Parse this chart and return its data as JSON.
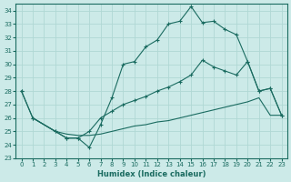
{
  "xlabel": "Humidex (Indice chaleur)",
  "bg_color": "#cceae8",
  "grid_color": "#b0d8d4",
  "line_color": "#1a6b60",
  "xlim": [
    -0.5,
    23.5
  ],
  "ylim": [
    23,
    34.5
  ],
  "xticks": [
    0,
    1,
    2,
    3,
    4,
    5,
    6,
    7,
    8,
    9,
    10,
    11,
    12,
    13,
    14,
    15,
    16,
    17,
    18,
    19,
    20,
    21,
    22,
    23
  ],
  "yticks": [
    23,
    24,
    25,
    26,
    27,
    28,
    29,
    30,
    31,
    32,
    33,
    34
  ],
  "line1_x": [
    0,
    1,
    3,
    4,
    5,
    6,
    7,
    8,
    9,
    10,
    11,
    12,
    13,
    14,
    15,
    16,
    17,
    18,
    19,
    20,
    21,
    22,
    23
  ],
  "line1_y": [
    28,
    26,
    25,
    24.5,
    24.5,
    23.8,
    25.5,
    27.5,
    30,
    30.2,
    31.3,
    31.8,
    33,
    33.2,
    34.3,
    33.1,
    33.2,
    32.6,
    32.2,
    30.2,
    28,
    28.2,
    26.2
  ],
  "line2_x": [
    0,
    1,
    3,
    4,
    5,
    6,
    7,
    8,
    9,
    10,
    11,
    12,
    13,
    14,
    15,
    16,
    17,
    18,
    19,
    20,
    21,
    22,
    23
  ],
  "line2_y": [
    28,
    26,
    25,
    24.5,
    24.5,
    25,
    26,
    26.5,
    27,
    27.3,
    27.6,
    28,
    28.3,
    28.7,
    29.2,
    30.3,
    29.8,
    29.5,
    29.2,
    30.2,
    28,
    28.2,
    26.2
  ],
  "line3_x": [
    1,
    2,
    3,
    4,
    5,
    6,
    7,
    8,
    9,
    10,
    11,
    12,
    13,
    14,
    15,
    16,
    17,
    18,
    19,
    20,
    21,
    22,
    23
  ],
  "line3_y": [
    26,
    25.5,
    25,
    24.8,
    24.7,
    24.7,
    24.8,
    25,
    25.2,
    25.4,
    25.5,
    25.7,
    25.8,
    26.0,
    26.2,
    26.4,
    26.6,
    26.8,
    27.0,
    27.2,
    27.5,
    26.2,
    26.2
  ]
}
